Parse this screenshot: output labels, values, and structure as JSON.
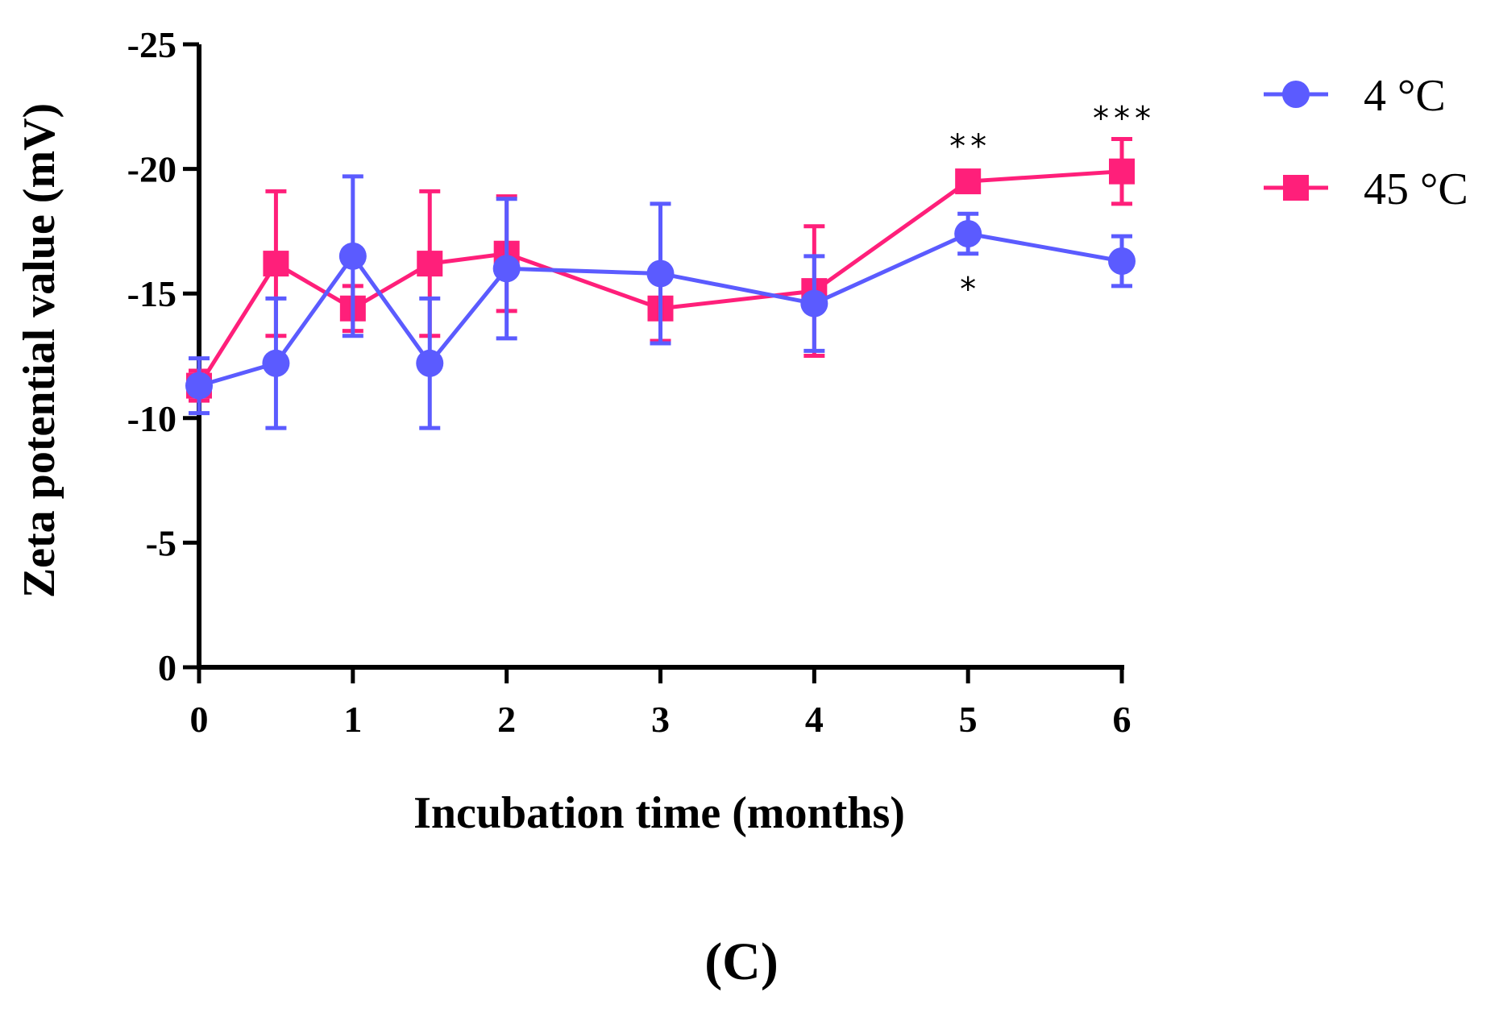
{
  "chart_data": {
    "type": "line",
    "title": "",
    "xlabel": "Incubation time (months)",
    "ylabel": "Zeta potential value (mV)",
    "xlim": [
      0,
      6
    ],
    "ylim": [
      0,
      -25
    ],
    "x_ticks": [
      0,
      1,
      2,
      3,
      4,
      5,
      6
    ],
    "x_tick_labels": [
      "0",
      "1",
      "2",
      "3",
      "4",
      "5",
      "6"
    ],
    "y_ticks": [
      0,
      -5,
      -10,
      -15,
      -20,
      -25
    ],
    "y_tick_labels": [
      "0",
      "-5",
      "-10",
      "-15",
      "-20",
      "-25"
    ],
    "grid": false,
    "legend_position": "top-right",
    "series": [
      {
        "name": "4 °C",
        "color": "#5b5bff",
        "marker": "circle",
        "x": [
          0,
          0.5,
          1,
          1.5,
          2,
          3,
          4,
          5,
          6
        ],
        "values": [
          -11.3,
          -12.2,
          -16.5,
          -12.2,
          -16.0,
          -15.8,
          -14.6,
          -17.4,
          -16.3
        ],
        "error": [
          1.1,
          2.6,
          3.2,
          2.6,
          2.8,
          2.8,
          1.9,
          0.8,
          1.0
        ]
      },
      {
        "name": "45 °C",
        "color": "#ff1f7a",
        "marker": "square",
        "x": [
          0,
          0.5,
          1,
          1.5,
          2,
          3,
          4,
          5,
          6
        ],
        "values": [
          -11.3,
          -16.2,
          -14.4,
          -16.2,
          -16.6,
          -14.4,
          -15.1,
          -19.5,
          -19.9
        ],
        "error": [
          0.6,
          2.9,
          0.9,
          2.9,
          2.3,
          1.3,
          2.6,
          0.0,
          1.3
        ]
      }
    ],
    "annotations": [
      {
        "text": "**",
        "x": 5,
        "series": "45 °C",
        "side": "above"
      },
      {
        "text": "*",
        "x": 5,
        "series": "4 °C",
        "side": "below"
      },
      {
        "text": "***",
        "x": 6,
        "series": "45 °C",
        "side": "above"
      }
    ],
    "panel_label": "(C)"
  }
}
